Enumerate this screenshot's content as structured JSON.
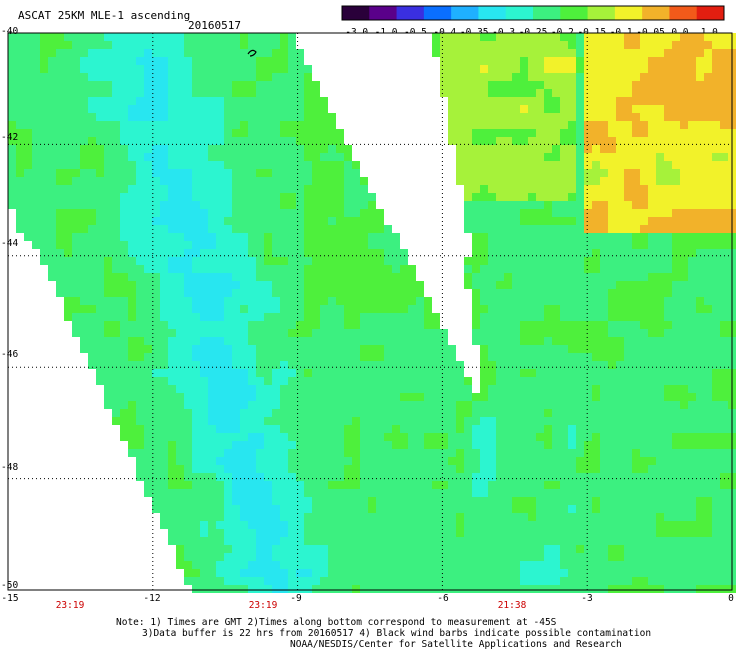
{
  "header": {
    "title": "ASCAT 25KM MLE-1 ascending",
    "date": "20160517"
  },
  "colorbar": {
    "tick_labels": [
      "-3.0",
      "-1.0",
      "-0.5",
      "-0.4",
      "-0.35",
      "-0.3",
      "-0.25",
      "-0.2",
      "-0.15",
      "-0.1",
      "-0.05",
      "0.0",
      "1.0"
    ],
    "colors": [
      "#2a003a",
      "#5a008a",
      "#3a2fe0",
      "#0a6fff",
      "#1fb0ff",
      "#28e6f0",
      "#2cf5d0",
      "#3cf080",
      "#4ef03c",
      "#a6f23a",
      "#f2f22a",
      "#f2b22a",
      "#f25a1a",
      "#e21e10"
    ]
  },
  "axes": {
    "lat_labels": [
      "-40",
      "-42",
      "-44",
      "-46",
      "-48",
      "-50"
    ],
    "lon_labels": [
      "-15",
      "-12",
      "-9",
      "-6",
      "-3",
      "0"
    ],
    "time_labels": [
      "23:19",
      "23:19",
      "21:38"
    ]
  },
  "notes": {
    "line1": "Note: 1) Times are GMT 2)Times along bottom correspond to measurement at -45S",
    "line2": "3)Data buffer is 22 hrs from 20160517 4) Black wind barbs indicate possible contamination",
    "line3": "NOAA/NESDIS/Center for Satellite Applications and Research"
  }
}
